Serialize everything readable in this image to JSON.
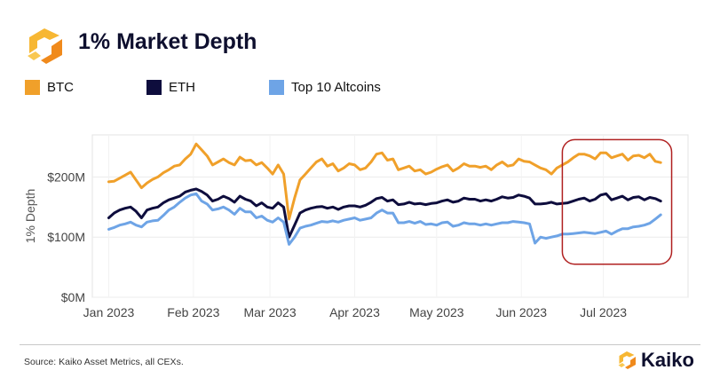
{
  "header": {
    "title": "1% Market Depth",
    "logo_icon": "kaiko-logo-icon"
  },
  "legend": [
    {
      "label": "BTC",
      "color": "#f0a02a"
    },
    {
      "label": "ETH",
      "color": "#0e0d3d"
    },
    {
      "label": "Top 10 Altcoins",
      "color": "#6ea4e6"
    }
  ],
  "footer": {
    "source": "Source: Kaiko Asset Metrics, all CEXs.",
    "brand": "Kaiko"
  },
  "chart_data": {
    "type": "line",
    "title": "1% Market Depth",
    "xlabel": "",
    "ylabel": "1% Depth",
    "ylim": [
      0,
      270
    ],
    "y_ticks": [
      {
        "value": 0,
        "label": "$0M"
      },
      {
        "value": 100,
        "label": "$100M"
      },
      {
        "value": 200,
        "label": "$200M"
      }
    ],
    "x_ticks": [
      {
        "value": 0,
        "label": "Jan 2023"
      },
      {
        "value": 31,
        "label": "Feb 2023"
      },
      {
        "value": 59,
        "label": "Mar 2023"
      },
      {
        "value": 90,
        "label": "Apr 2023"
      },
      {
        "value": 120,
        "label": "May 2023"
      },
      {
        "value": 151,
        "label": "Jun 2023"
      },
      {
        "value": 181,
        "label": "Jul 2023"
      }
    ],
    "xlim": [
      -6,
      212
    ],
    "grid": true,
    "annotation": {
      "type": "highlight-box",
      "x_range": [
        166,
        206
      ],
      "y_range": [
        55,
        262
      ],
      "color": "#b02020"
    },
    "series": [
      {
        "name": "BTC",
        "color": "#f0a02a",
        "x": [
          0,
          2,
          4,
          6,
          8,
          10,
          12,
          14,
          16,
          18,
          20,
          22,
          24,
          26,
          28,
          30,
          32,
          34,
          36,
          38,
          40,
          42,
          44,
          46,
          48,
          50,
          52,
          54,
          56,
          58,
          60,
          62,
          64,
          66,
          68,
          70,
          72,
          74,
          76,
          78,
          80,
          82,
          84,
          86,
          88,
          90,
          92,
          94,
          96,
          98,
          100,
          102,
          104,
          106,
          108,
          110,
          112,
          114,
          116,
          118,
          120,
          122,
          124,
          126,
          128,
          130,
          132,
          134,
          136,
          138,
          140,
          142,
          144,
          146,
          148,
          150,
          152,
          154,
          156,
          158,
          160,
          162,
          164,
          166,
          168,
          170,
          172,
          174,
          176,
          178,
          180,
          182,
          184,
          186,
          188,
          190,
          192,
          194,
          196,
          198,
          200,
          202
        ],
        "values": [
          192,
          193,
          198,
          203,
          208,
          195,
          182,
          190,
          196,
          200,
          207,
          212,
          218,
          220,
          230,
          238,
          255,
          245,
          235,
          220,
          225,
          230,
          224,
          220,
          233,
          227,
          228,
          220,
          224,
          215,
          205,
          220,
          205,
          130,
          165,
          195,
          205,
          215,
          225,
          230,
          218,
          222,
          210,
          215,
          222,
          220,
          212,
          215,
          225,
          238,
          240,
          228,
          230,
          212,
          215,
          218,
          210,
          212,
          205,
          208,
          213,
          217,
          220,
          210,
          215,
          222,
          218,
          218,
          216,
          218,
          212,
          220,
          225,
          218,
          220,
          230,
          226,
          225,
          220,
          215,
          212,
          205,
          215,
          220,
          225,
          232,
          238,
          238,
          235,
          230,
          240,
          240,
          232,
          235,
          238,
          228,
          235,
          236,
          232,
          238,
          226,
          224
        ]
      },
      {
        "name": "ETH",
        "color": "#0e0d3d",
        "x": [
          0,
          2,
          4,
          6,
          8,
          10,
          12,
          14,
          16,
          18,
          20,
          22,
          24,
          26,
          28,
          30,
          32,
          34,
          36,
          38,
          40,
          42,
          44,
          46,
          48,
          50,
          52,
          54,
          56,
          58,
          60,
          62,
          64,
          66,
          68,
          70,
          72,
          74,
          76,
          78,
          80,
          82,
          84,
          86,
          88,
          90,
          92,
          94,
          96,
          98,
          100,
          102,
          104,
          106,
          108,
          110,
          112,
          114,
          116,
          118,
          120,
          122,
          124,
          126,
          128,
          130,
          132,
          134,
          136,
          138,
          140,
          142,
          144,
          146,
          148,
          150,
          152,
          154,
          156,
          158,
          160,
          162,
          164,
          166,
          168,
          170,
          172,
          174,
          176,
          178,
          180,
          182,
          184,
          186,
          188,
          190,
          192,
          194,
          196,
          198,
          200,
          202
        ],
        "values": [
          132,
          140,
          145,
          148,
          150,
          143,
          132,
          145,
          148,
          150,
          157,
          162,
          165,
          168,
          175,
          178,
          180,
          176,
          170,
          160,
          163,
          168,
          164,
          158,
          168,
          163,
          160,
          152,
          157,
          150,
          148,
          157,
          150,
          100,
          120,
          140,
          145,
          148,
          150,
          151,
          148,
          150,
          146,
          150,
          152,
          152,
          150,
          153,
          158,
          164,
          166,
          160,
          162,
          154,
          155,
          158,
          155,
          156,
          154,
          156,
          157,
          160,
          162,
          158,
          160,
          165,
          163,
          163,
          160,
          162,
          160,
          163,
          167,
          165,
          166,
          170,
          168,
          165,
          155,
          155,
          156,
          158,
          155,
          156,
          157,
          160,
          163,
          165,
          160,
          163,
          170,
          172,
          162,
          165,
          168,
          162,
          166,
          167,
          162,
          166,
          164,
          160
        ]
      },
      {
        "name": "Top 10 Altcoins",
        "color": "#6ea4e6",
        "x": [
          0,
          2,
          4,
          6,
          8,
          10,
          12,
          14,
          16,
          18,
          20,
          22,
          24,
          26,
          28,
          30,
          32,
          34,
          36,
          38,
          40,
          42,
          44,
          46,
          48,
          50,
          52,
          54,
          56,
          58,
          60,
          62,
          64,
          66,
          68,
          70,
          72,
          74,
          76,
          78,
          80,
          82,
          84,
          86,
          88,
          90,
          92,
          94,
          96,
          98,
          100,
          102,
          104,
          106,
          108,
          110,
          112,
          114,
          116,
          118,
          120,
          122,
          124,
          126,
          128,
          130,
          132,
          134,
          136,
          138,
          140,
          142,
          144,
          146,
          148,
          150,
          152,
          154,
          156,
          158,
          160,
          162,
          164,
          166,
          168,
          170,
          172,
          174,
          176,
          178,
          180,
          182,
          184,
          186,
          188,
          190,
          192,
          194,
          196,
          198,
          200,
          202
        ],
        "values": [
          113,
          116,
          120,
          122,
          125,
          120,
          117,
          125,
          127,
          128,
          136,
          145,
          150,
          158,
          165,
          170,
          172,
          160,
          155,
          145,
          147,
          150,
          145,
          138,
          148,
          142,
          142,
          132,
          135,
          128,
          125,
          132,
          125,
          88,
          100,
          115,
          118,
          120,
          123,
          126,
          125,
          127,
          125,
          128,
          130,
          132,
          128,
          130,
          132,
          140,
          145,
          140,
          140,
          124,
          124,
          126,
          123,
          126,
          121,
          122,
          120,
          124,
          125,
          118,
          120,
          124,
          122,
          122,
          120,
          122,
          120,
          122,
          124,
          124,
          126,
          125,
          124,
          122,
          90,
          100,
          98,
          100,
          102,
          105,
          105,
          106,
          107,
          108,
          107,
          106,
          108,
          110,
          105,
          110,
          114,
          114,
          117,
          118,
          120,
          123,
          130,
          137
        ]
      }
    ]
  }
}
